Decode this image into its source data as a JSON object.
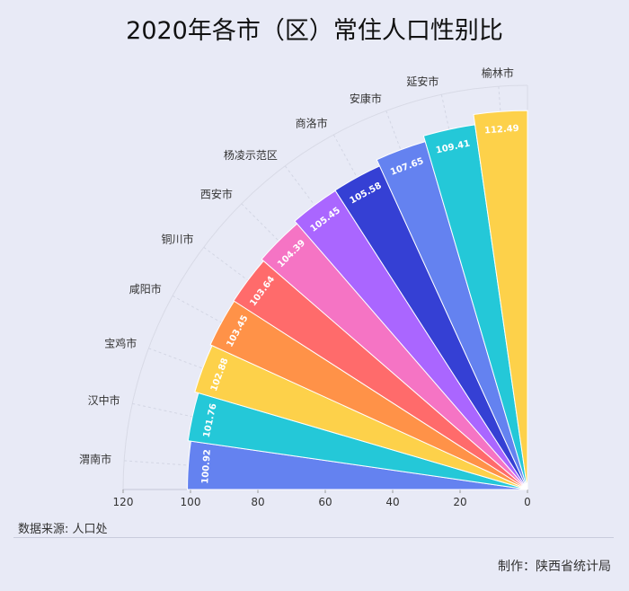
{
  "title": "2020年各市（区）常住人口性别比",
  "source": "数据来源: 人口处",
  "credit": "制作：陕西省统计局",
  "chart_data": {
    "type": "bar",
    "title": "2020年各市（区）常住人口性别比",
    "layout": "polar-radial-fan",
    "categories": [
      "渭南市",
      "汉中市",
      "宝鸡市",
      "咸阳市",
      "铜川市",
      "西安市",
      "杨凌示范区",
      "商洛市",
      "安康市",
      "延安市",
      "榆林市"
    ],
    "values": [
      100.92,
      101.76,
      102.88,
      103.45,
      103.64,
      104.39,
      105.45,
      105.58,
      107.65,
      109.41,
      112.49
    ],
    "value_labels": [
      "100.92",
      "101.76",
      "102.88",
      "103.45",
      "103.64",
      "104.39",
      "105.45",
      "105.58",
      "107.65",
      "109.41",
      "112.49"
    ],
    "colors": [
      "#6482f0",
      "#24c8d8",
      "#fdd14a",
      "#ff9248",
      "#ff6b6b",
      "#f574c4",
      "#aa66ff",
      "#3540d4",
      "#6482f0",
      "#24c8d8",
      "#fdd14a"
    ],
    "radial_range": [
      0,
      120
    ],
    "ticks": [
      "120",
      "100",
      "80",
      "60",
      "40",
      "20",
      "0"
    ],
    "grid": true
  }
}
